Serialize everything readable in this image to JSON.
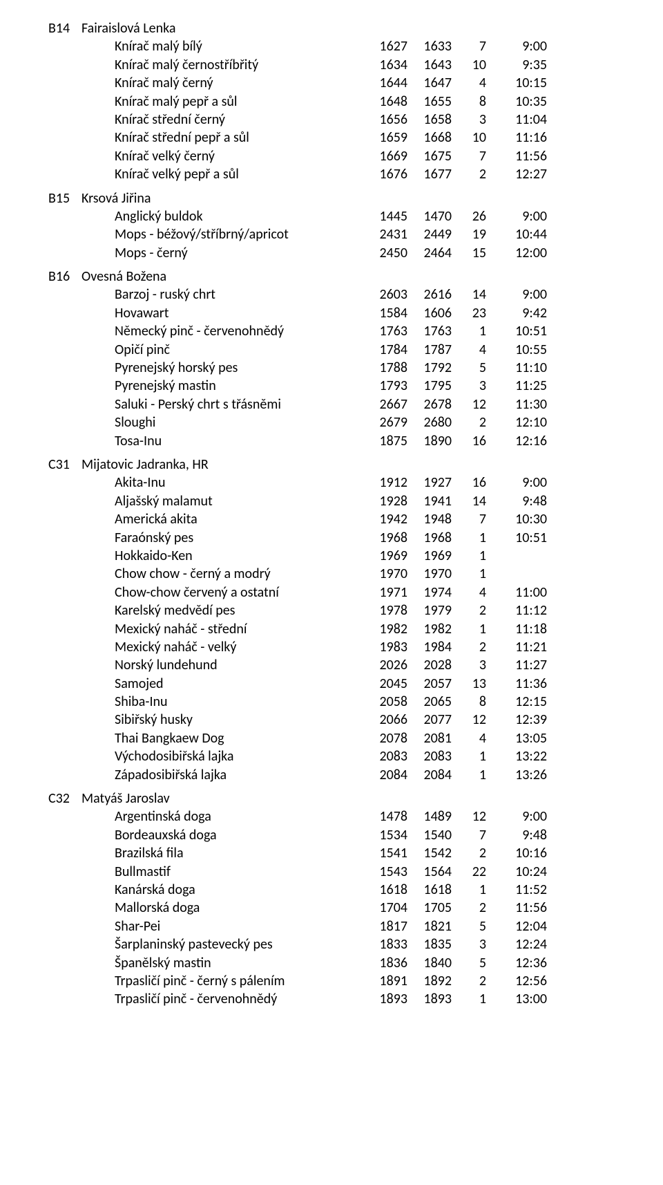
{
  "sections": [
    {
      "code": "B14",
      "judge": "Fairaislová Lenka",
      "rows": [
        {
          "breed": "Knírač malý bílý",
          "from": "1627",
          "to": "1633",
          "count": "7",
          "time": "9:00"
        },
        {
          "breed": "Knírač malý černostříbřitý",
          "from": "1634",
          "to": "1643",
          "count": "10",
          "time": "9:35"
        },
        {
          "breed": "Knírač malý černý",
          "from": "1644",
          "to": "1647",
          "count": "4",
          "time": "10:15"
        },
        {
          "breed": "Knírač malý pepř a sůl",
          "from": "1648",
          "to": "1655",
          "count": "8",
          "time": "10:35"
        },
        {
          "breed": "Knírač střední černý",
          "from": "1656",
          "to": "1658",
          "count": "3",
          "time": "11:04"
        },
        {
          "breed": "Knírač střední pepř a sůl",
          "from": "1659",
          "to": "1668",
          "count": "10",
          "time": "11:16"
        },
        {
          "breed": "Knírač velký černý",
          "from": "1669",
          "to": "1675",
          "count": "7",
          "time": "11:56"
        },
        {
          "breed": "Knírač velký pepř a sůl",
          "from": "1676",
          "to": "1677",
          "count": "2",
          "time": "12:27"
        }
      ]
    },
    {
      "code": "B15",
      "judge": "Krsová Jiřina",
      "rows": [
        {
          "breed": "Anglický buldok",
          "from": "1445",
          "to": "1470",
          "count": "26",
          "time": "9:00"
        },
        {
          "breed": "Mops - béžový/stříbrný/apricot",
          "from": "2431",
          "to": "2449",
          "count": "19",
          "time": "10:44"
        },
        {
          "breed": "Mops - černý",
          "from": "2450",
          "to": "2464",
          "count": "15",
          "time": "12:00"
        }
      ]
    },
    {
      "code": "B16",
      "judge": "Ovesná Božena",
      "rows": [
        {
          "breed": "Barzoj - ruský chrt",
          "from": "2603",
          "to": "2616",
          "count": "14",
          "time": "9:00"
        },
        {
          "breed": "Hovawart",
          "from": "1584",
          "to": "1606",
          "count": "23",
          "time": "9:42"
        },
        {
          "breed": "Německý pinč - červenohnědý",
          "from": "1763",
          "to": "1763",
          "count": "1",
          "time": "10:51"
        },
        {
          "breed": "Opičí pinč",
          "from": "1784",
          "to": "1787",
          "count": "4",
          "time": "10:55"
        },
        {
          "breed": "Pyrenejský horský pes",
          "from": "1788",
          "to": "1792",
          "count": "5",
          "time": "11:10"
        },
        {
          "breed": "Pyrenejský mastin",
          "from": "1793",
          "to": "1795",
          "count": "3",
          "time": "11:25"
        },
        {
          "breed": "Saluki - Perský chrt s třásněmi",
          "from": "2667",
          "to": "2678",
          "count": "12",
          "time": "11:30"
        },
        {
          "breed": "Sloughi",
          "from": "2679",
          "to": "2680",
          "count": "2",
          "time": "12:10"
        },
        {
          "breed": "Tosa-Inu",
          "from": "1875",
          "to": "1890",
          "count": "16",
          "time": "12:16"
        }
      ]
    },
    {
      "code": "C31",
      "judge": "Mijatovic Jadranka, HR",
      "rows": [
        {
          "breed": "Akita-Inu",
          "from": "1912",
          "to": "1927",
          "count": "16",
          "time": "9:00"
        },
        {
          "breed": "Aljašský malamut",
          "from": "1928",
          "to": "1941",
          "count": "14",
          "time": "9:48"
        },
        {
          "breed": "Americká akita",
          "from": "1942",
          "to": "1948",
          "count": "7",
          "time": "10:30"
        },
        {
          "breed": "Faraónský pes",
          "from": "1968",
          "to": "1968",
          "count": "1",
          "time": "10:51"
        },
        {
          "breed": "Hokkaido-Ken",
          "from": "1969",
          "to": "1969",
          "count": "1",
          "time": ""
        },
        {
          "breed": "Chow chow -  černý a modrý",
          "from": "1970",
          "to": "1970",
          "count": "1",
          "time": ""
        },
        {
          "breed": "Chow-chow  červený a ostatní",
          "from": "1971",
          "to": "1974",
          "count": "4",
          "time": "11:00"
        },
        {
          "breed": "Karelský medvědí pes",
          "from": "1978",
          "to": "1979",
          "count": "2",
          "time": "11:12"
        },
        {
          "breed": "Mexický naháč - střední",
          "from": "1982",
          "to": "1982",
          "count": "1",
          "time": "11:18"
        },
        {
          "breed": "Mexický naháč - velký",
          "from": "1983",
          "to": "1984",
          "count": "2",
          "time": "11:21"
        },
        {
          "breed": "Norský lundehund",
          "from": "2026",
          "to": "2028",
          "count": "3",
          "time": "11:27"
        },
        {
          "breed": "Samojed",
          "from": "2045",
          "to": "2057",
          "count": "13",
          "time": "11:36"
        },
        {
          "breed": "Shiba-Inu",
          "from": "2058",
          "to": "2065",
          "count": "8",
          "time": "12:15"
        },
        {
          "breed": "Sibiřský husky",
          "from": "2066",
          "to": "2077",
          "count": "12",
          "time": "12:39"
        },
        {
          "breed": "Thai Bangkaew Dog",
          "from": "2078",
          "to": "2081",
          "count": "4",
          "time": "13:05"
        },
        {
          "breed": "Východosibiřská lajka",
          "from": "2083",
          "to": "2083",
          "count": "1",
          "time": "13:22"
        },
        {
          "breed": "Západosibiřská lajka",
          "from": "2084",
          "to": "2084",
          "count": "1",
          "time": "13:26"
        }
      ]
    },
    {
      "code": "C32",
      "judge": "Matyáš Jaroslav",
      "rows": [
        {
          "breed": "Argentinská doga",
          "from": "1478",
          "to": "1489",
          "count": "12",
          "time": "9:00"
        },
        {
          "breed": "Bordeauxská doga",
          "from": "1534",
          "to": "1540",
          "count": "7",
          "time": "9:48"
        },
        {
          "breed": "Brazilská fila",
          "from": "1541",
          "to": "1542",
          "count": "2",
          "time": "10:16"
        },
        {
          "breed": "Bullmastif",
          "from": "1543",
          "to": "1564",
          "count": "22",
          "time": "10:24"
        },
        {
          "breed": "Kanárská doga",
          "from": "1618",
          "to": "1618",
          "count": "1",
          "time": "11:52"
        },
        {
          "breed": "Mallorská doga",
          "from": "1704",
          "to": "1705",
          "count": "2",
          "time": "11:56"
        },
        {
          "breed": "Shar-Pei",
          "from": "1817",
          "to": "1821",
          "count": "5",
          "time": "12:04"
        },
        {
          "breed": "Šarplaninský pastevecký pes",
          "from": "1833",
          "to": "1835",
          "count": "3",
          "time": "12:24"
        },
        {
          "breed": "Španělský mastin",
          "from": "1836",
          "to": "1840",
          "count": "5",
          "time": "12:36"
        },
        {
          "breed": "Trpasličí pinč - černý s pálením",
          "from": "1891",
          "to": "1892",
          "count": "2",
          "time": "12:56"
        },
        {
          "breed": "Trpasličí pinč - červenohnědý",
          "from": "1893",
          "to": "1893",
          "count": "1",
          "time": "13:00"
        }
      ]
    }
  ]
}
